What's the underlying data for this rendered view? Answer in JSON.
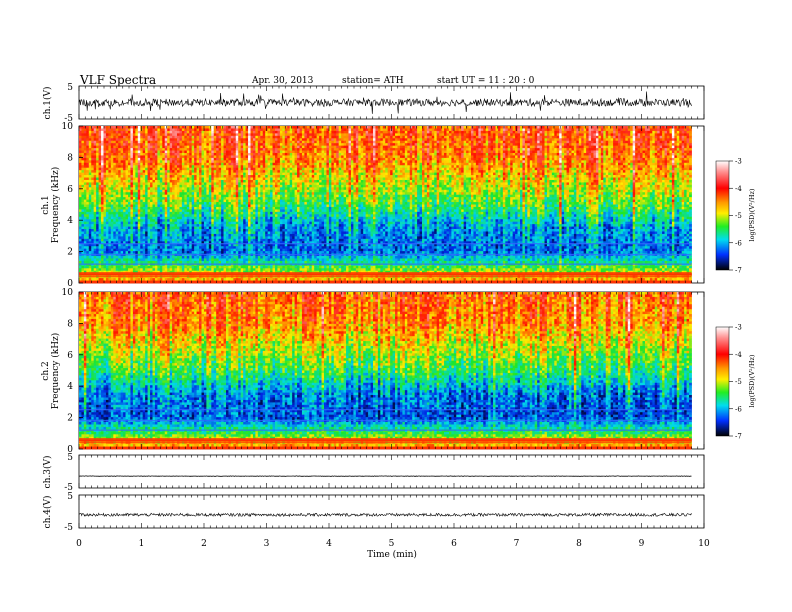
{
  "header": {
    "title": "VLF  Spectra",
    "date": "Apr. 30, 2013",
    "station": "station= ATH",
    "start": "start  UT  =    11 : 20 : 0"
  },
  "colors": {
    "spectrum_high": "#ff1a00",
    "spectrum_mid": "#ffe600",
    "spectrum_low": "#00e040",
    "spectrum_floor": "#0020d0",
    "trace": "#000000"
  },
  "chart_data": [
    {
      "type": "line",
      "panel": "ch.1 waveform",
      "ylabel": "ch.1(V)",
      "ylim": [
        -5,
        5
      ],
      "yticks": [
        "5",
        "-5"
      ],
      "xlim": [
        0,
        10
      ],
      "note_series": "noisy waveform centred near 0 V, amplitude roughly -2 to +2 V with spikes",
      "values_summary": {
        "mean": 0.0,
        "min": -2.8,
        "max": 2.6
      }
    },
    {
      "type": "heatmap",
      "panel": "ch.1 spectrogram",
      "ylabel": "ch.1",
      "ylabel2": "Frequency  (kHz)",
      "ylim": [
        0,
        10
      ],
      "yticks": [
        "0",
        "2",
        "4",
        "6",
        "8",
        "10"
      ],
      "xlim": [
        0,
        9.8
      ],
      "colorbar": {
        "label": "log(PSD)(V²/Hz)",
        "range": [
          -7,
          -3
        ],
        "ticks": [
          "-3",
          "-4",
          "-5",
          "-6",
          "-7"
        ]
      },
      "profile_khz": [
        0,
        2,
        3.5,
        5,
        6.5,
        8,
        10
      ],
      "profile_logpsd": [
        -4.2,
        -6.2,
        -6.0,
        -5.2,
        -4.7,
        -4.2,
        -4.0
      ]
    },
    {
      "type": "heatmap",
      "panel": "ch.2 spectrogram",
      "ylabel": "ch.2",
      "ylabel2": "Frequency  (kHz)",
      "ylim": [
        0,
        10
      ],
      "yticks": [
        "0",
        "2",
        "4",
        "6",
        "8",
        "10"
      ],
      "xlim": [
        0,
        9.8
      ],
      "colorbar": {
        "label": "log(PSD)(V²/Hz)",
        "range": [
          -7,
          -3
        ],
        "ticks": [
          "-3",
          "-4",
          "-5",
          "-6",
          "-7"
        ]
      },
      "profile_khz": [
        0,
        2,
        3.5,
        5,
        6.5,
        8,
        10
      ],
      "profile_logpsd": [
        -4.2,
        -6.3,
        -6.1,
        -5.3,
        -4.8,
        -4.3,
        -4.1
      ]
    },
    {
      "type": "line",
      "panel": "ch.3 waveform",
      "ylabel": "ch.3(V)",
      "ylim": [
        -5,
        5
      ],
      "yticks": [
        "5",
        "-5"
      ],
      "values_summary": {
        "mean": -1.4
      }
    },
    {
      "type": "line",
      "panel": "ch.4 waveform",
      "ylabel": "ch.4(V)",
      "ylim": [
        -5,
        5
      ],
      "yticks": [
        "5",
        "-5"
      ],
      "values_summary": {
        "mean": -1.0,
        "min": -1.5,
        "max": -0.5
      }
    }
  ],
  "xaxis": {
    "label": "Time  (min)",
    "ticks": [
      "0",
      "1",
      "2",
      "3",
      "4",
      "5",
      "6",
      "7",
      "8",
      "9",
      "10"
    ],
    "xlim": [
      0,
      10
    ]
  }
}
